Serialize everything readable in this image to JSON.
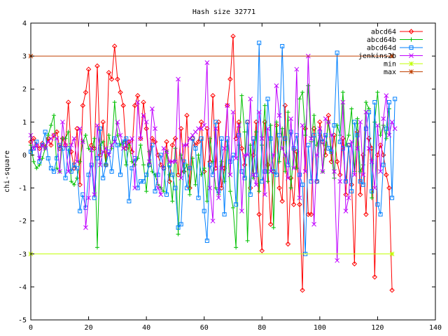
{
  "chart_data": {
    "type": "line",
    "title": "Hash size 32771",
    "xlabel": "",
    "ylabel": "chi-square",
    "xlim": [
      0,
      140
    ],
    "ylim": [
      -5,
      4
    ],
    "xticks": [
      0,
      20,
      40,
      60,
      80,
      100,
      120,
      140
    ],
    "yticks": [
      -5,
      -4,
      -3,
      -2,
      -1,
      0,
      1,
      2,
      3,
      4
    ],
    "grid": false,
    "legend_position": "top-right",
    "series": [
      {
        "name": "abcd64",
        "color": "#ff0000",
        "marker": "diamond",
        "values": [
          0.4,
          0.5,
          0.3,
          0.2,
          0.35,
          0.25,
          0.5,
          0.3,
          0.6,
          0.7,
          0.2,
          0.5,
          0.3,
          1.6,
          0.1,
          -0.4,
          0.8,
          -0.9,
          1.5,
          1.9,
          2.6,
          0.3,
          0.2,
          2.7,
          0.0,
          1.0,
          -0.3,
          2.5,
          2.3,
          3.3,
          2.3,
          1.9,
          1.5,
          0.2,
          0.4,
          0.1,
          1.5,
          1.8,
          0.5,
          1.6,
          0.8,
          -0.3,
          0.5,
          0.4,
          0.0,
          -0.3,
          -0.4,
          0.4,
          -0.8,
          0.3,
          0.5,
          -0.6,
          0.8,
          -0.5,
          1.2,
          -1.0,
          0.5,
          0.3,
          0.4,
          1.0,
          -0.5,
          0.8,
          -0.2,
          1.8,
          -0.4,
          1.0,
          -1.0,
          -0.4,
          1.5,
          2.3,
          3.6,
          0.5,
          1.0,
          0.2,
          -0.3,
          1.0,
          -1.0,
          0.0,
          1.0,
          -1.8,
          -2.9,
          1.0,
          -0.3,
          -2.1,
          -0.5,
          0.9,
          -1.0,
          -1.4,
          1.5,
          -2.7,
          -0.7,
          -1.5,
          0.1,
          -1.5,
          -4.1,
          0.8,
          -1.8,
          -1.8,
          0.8,
          -0.8,
          1.0,
          0.4,
          0.0,
          1.2,
          -0.2,
          0.6,
          -0.2,
          -0.6,
          0.5,
          -1.2,
          0.3,
          -0.9,
          -3.3,
          0.7,
          -1.2,
          0.0,
          -1.8,
          0.5,
          0.2,
          -3.7,
          0.0,
          0.3,
          0.0,
          -0.6,
          -1.0,
          -4.1
        ]
      },
      {
        "name": "abcd64b",
        "color": "#00c000",
        "marker": "plus",
        "values": [
          0.3,
          -0.2,
          -0.4,
          -0.3,
          -0.1,
          0.2,
          0.6,
          0.9,
          1.2,
          -0.4,
          -0.5,
          0.5,
          0.5,
          0.7,
          -0.8,
          -0.9,
          -0.7,
          -0.2,
          0.4,
          0.6,
          0.2,
          0.1,
          0.5,
          -2.8,
          0.3,
          0.4,
          -0.3,
          0.6,
          0.2,
          1.6,
          0.6,
          0.3,
          0.4,
          -0.3,
          0.3,
          -0.2,
          -0.3,
          -0.1,
          0.3,
          -0.3,
          -1.1,
          0.1,
          -0.5,
          -0.6,
          -0.9,
          -1.0,
          -1.1,
          0.1,
          -0.6,
          -1.4,
          0.2,
          -2.4,
          0.0,
          -0.5,
          -0.3,
          -1.2,
          -0.1,
          -0.9,
          0.0,
          -0.6,
          -0.4,
          -1.4,
          0.5,
          -0.2,
          -1.0,
          -1.2,
          -0.2,
          -0.8,
          0.4,
          -1.1,
          -1.6,
          -2.8,
          0.3,
          1.8,
          0.7,
          -2.6,
          0.3,
          -0.7,
          0.7,
          -1.1,
          0.3,
          1.5,
          -0.8,
          0.9,
          -2.2,
          1.0,
          -0.2,
          0.8,
          -0.5,
          1.3,
          -1.0,
          0.2,
          -0.4,
          1.7,
          1.9,
          0.6,
          2.1,
          0.4,
          1.2,
          0.3,
          0.6,
          -0.5,
          0.3,
          1.0,
          0.1,
          -0.7,
          0.9,
          0.6,
          1.9,
          0.3,
          0.6,
          1.4,
          -0.5,
          1.1,
          -0.5,
          -0.3,
          1.6,
          1.4,
          -1.3,
          1.0,
          1.9,
          0.6,
          0.9,
          0.5,
          1.4
        ]
      },
      {
        "name": "abcd64d",
        "color": "#0080ff",
        "marker": "square",
        "values": [
          0.1,
          0.2,
          0.4,
          -0.2,
          0.3,
          0.7,
          -0.1,
          -0.4,
          -0.5,
          -0.1,
          0.3,
          0.2,
          -0.7,
          0.2,
          -0.5,
          -0.3,
          -0.4,
          -1.7,
          -1.2,
          -1.6,
          -0.6,
          -0.3,
          -1.3,
          -0.1,
          0.8,
          -0.7,
          -0.3,
          0.1,
          -0.5,
          0.5,
          0.3,
          -0.6,
          0.4,
          0.5,
          -1.4,
          -0.4,
          -0.1,
          -1.0,
          -0.8,
          -0.8,
          -0.6,
          -0.3,
          0.3,
          -1.1,
          -0.6,
          0.0,
          -0.4,
          -1.2,
          -0.3,
          -0.6,
          -1.0,
          -2.2,
          -2.1,
          -0.2,
          -1.0,
          -0.4,
          0.5,
          0.2,
          -1.3,
          0.5,
          -1.7,
          -2.6,
          -0.3,
          -0.6,
          1.0,
          -1.1,
          0.5,
          -1.8,
          0.5,
          -0.2,
          0.0,
          -1.5,
          0.6,
          -0.5,
          -0.7,
          1.0,
          -1.2,
          0.5,
          -0.6,
          3.4,
          -0.8,
          -0.5,
          1.7,
          0.5,
          -0.5,
          -0.6,
          0.6,
          3.3,
          0.5,
          -0.3,
          0.7,
          0.2,
          0.6,
          -0.6,
          -0.9,
          -3.0,
          0.3,
          -0.8,
          0.6,
          -0.8,
          0.7,
          0.4,
          0.6,
          0.2,
          0.1,
          0.9,
          3.1,
          0.4,
          0.2,
          -0.8,
          0.3,
          -1.1,
          1.0,
          0.6,
          -0.8,
          -0.9,
          0.8,
          1.3,
          -1.1,
          1.6,
          -1.5,
          -1.8,
          -0.3,
          0.8,
          1.6,
          -1.3,
          1.7
        ]
      },
      {
        "name": "jenkins2b",
        "color": "#c000ff",
        "marker": "x",
        "values": [
          0.6,
          0.2,
          0.3,
          -0.1,
          0.3,
          0.2,
          0.4,
          0.5,
          0.6,
          0.5,
          -0.5,
          1.0,
          0.3,
          -0.5,
          0.3,
          0.5,
          -0.2,
          0.8,
          0.4,
          -2.2,
          -1.3,
          0.2,
          -1.2,
          0.9,
          -0.3,
          0.1,
          0.2,
          0.0,
          0.3,
          0.4,
          1.0,
          0.6,
          0.2,
          0.3,
          0.4,
          0.5,
          -1.0,
          1.6,
          0.5,
          1.2,
          1.0,
          -0.2,
          1.4,
          0.8,
          -1.0,
          -1.2,
          0.2,
          0.1,
          -0.2,
          -0.2,
          -0.2,
          2.3,
          -0.7,
          0.3,
          0.3,
          0.5,
          0.6,
          0.7,
          0.8,
          0.8,
          0.9,
          2.8,
          -1.0,
          -2.0,
          0.8,
          -1.3,
          -0.4,
          0.2,
          1.5,
          -0.6,
          1.3,
          -0.1,
          0.9,
          -1.7,
          0.0,
          0.0,
          1.7,
          -0.6,
          -0.9,
          1.3,
          0.5,
          -1.2,
          0.8,
          -0.5,
          0.0,
          2.1,
          1.2,
          0.2,
          0.0,
          -0.7,
          1.1,
          -0.4,
          2.6,
          -1.3,
          0.9,
          -0.5,
          3.0,
          0.5,
          -2.1,
          0.0,
          0.8,
          -0.5,
          1.1,
          1.0,
          0.6,
          -0.5,
          -3.2,
          -0.8,
          1.6,
          -1.7,
          -1.3,
          0.4,
          -0.6,
          0.2,
          1.0,
          -0.6,
          1.3,
          0.2,
          -0.2,
          -1.0,
          0.9,
          -0.5,
          1.1,
          1.8,
          0.6,
          1.0,
          0.8
        ]
      },
      {
        "name": "min",
        "color": "#c0ff00",
        "marker": "star",
        "values": [
          -3,
          -3
        ]
      },
      {
        "name": "max",
        "color": "#c04000",
        "marker": "asterisk",
        "values": [
          3,
          3
        ]
      }
    ]
  }
}
